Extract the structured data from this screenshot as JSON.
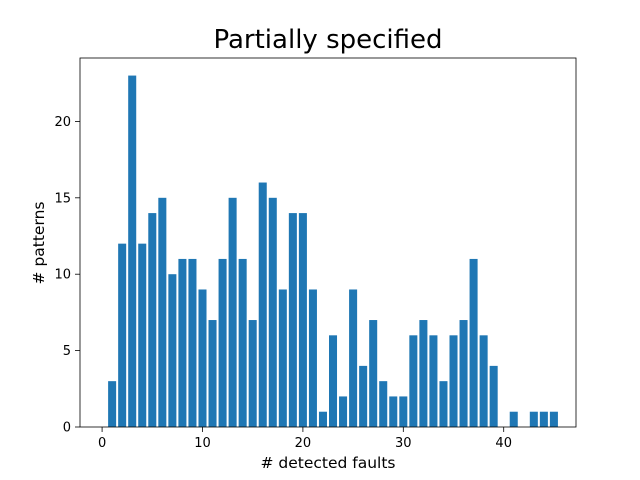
{
  "chart_data": {
    "type": "bar",
    "title": "Partially specified",
    "xlabel": "# detected faults",
    "ylabel": "# patterns",
    "xlim": [
      -2.2,
      47.2
    ],
    "ylim": [
      0,
      24.15
    ],
    "xticks": [
      0,
      10,
      20,
      30,
      40
    ],
    "yticks": [
      0,
      5,
      10,
      15,
      20
    ],
    "grid": false,
    "bar_color": "#1f77b4",
    "x": [
      1,
      2,
      3,
      4,
      5,
      6,
      7,
      8,
      9,
      10,
      11,
      12,
      13,
      14,
      15,
      16,
      17,
      18,
      19,
      20,
      21,
      22,
      23,
      24,
      25,
      26,
      27,
      28,
      29,
      30,
      31,
      32,
      33,
      34,
      35,
      36,
      37,
      38,
      39,
      40,
      41,
      42,
      43,
      44,
      45
    ],
    "values": [
      3,
      12,
      23,
      12,
      14,
      15,
      10,
      11,
      11,
      9,
      7,
      11,
      15,
      11,
      7,
      16,
      15,
      9,
      14,
      14,
      9,
      1,
      6,
      2,
      9,
      4,
      7,
      3,
      2,
      2,
      6,
      7,
      6,
      3,
      6,
      7,
      11,
      6,
      4,
      0,
      1,
      0,
      1,
      1,
      1
    ]
  }
}
